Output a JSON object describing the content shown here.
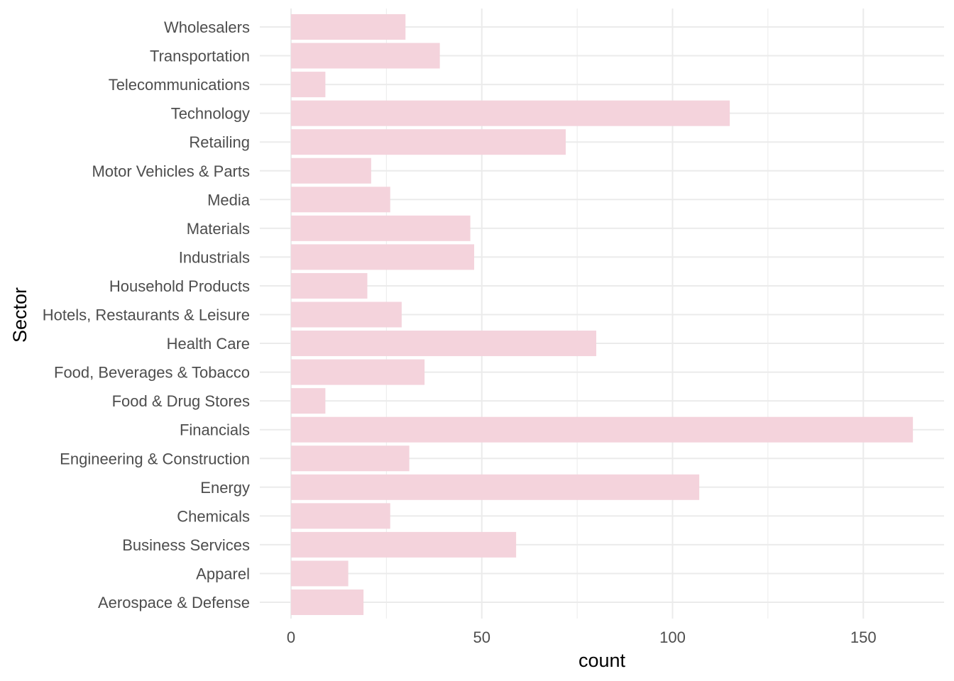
{
  "chart_data": {
    "type": "bar",
    "orientation": "horizontal",
    "title": "",
    "xlabel": "count",
    "ylabel": "Sector",
    "xlim": [
      0,
      170
    ],
    "x_ticks": [
      0,
      50,
      100,
      150
    ],
    "x_tick_labels": [
      "0",
      "50",
      "100",
      "150"
    ],
    "grid": true,
    "legend": "none",
    "bar_color": "#f4d3dc",
    "categories": [
      "Wholesalers",
      "Transportation",
      "Telecommunications",
      "Technology",
      "Retailing",
      "Motor Vehicles & Parts",
      "Media",
      "Materials",
      "Industrials",
      "Household Products",
      "Hotels, Restaurants & Leisure",
      "Health Care",
      "Food, Beverages & Tobacco",
      "Food & Drug Stores",
      "Financials",
      "Engineering & Construction",
      "Energy",
      "Chemicals",
      "Business Services",
      "Apparel",
      "Aerospace & Defense"
    ],
    "values": [
      30,
      39,
      9,
      115,
      72,
      21,
      26,
      47,
      48,
      20,
      29,
      80,
      35,
      9,
      163,
      31,
      107,
      26,
      59,
      15,
      19
    ]
  }
}
